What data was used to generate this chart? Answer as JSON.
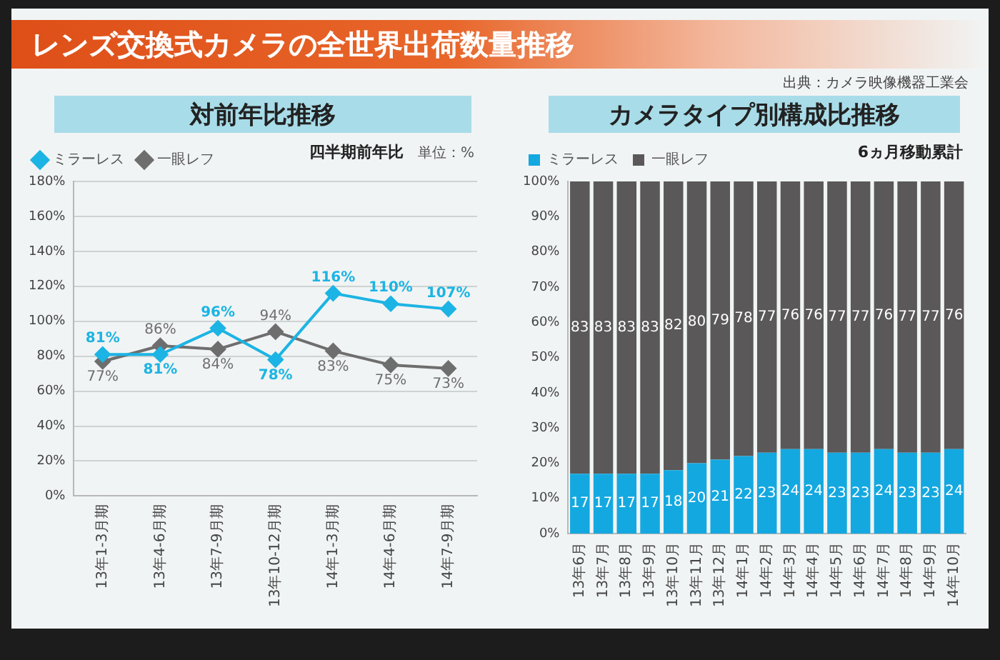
{
  "chart_data": [
    {
      "type": "other",
      "title": "レンズ交換式カメラの全世界出荷数量推移",
      "annotations": [
        "出典：カメラ映像機器工業会"
      ]
    },
    {
      "type": "line",
      "title": "対前年比推移",
      "categories": [
        "13年1-3月期",
        "13年4-6月期",
        "13年7-9月期",
        "13年10-12月期",
        "14年1-3月期",
        "14年4-6月期",
        "14年7-9月期"
      ],
      "series": [
        {
          "name": "ミラーレス",
          "color": "#1cb4e4",
          "values": [
            81,
            81,
            96,
            78,
            116,
            110,
            107
          ],
          "value_labels": [
            "81%",
            "81%",
            "96%",
            "78%",
            "116%",
            "110%",
            "107%"
          ]
        },
        {
          "name": "一眼レフ",
          "color": "#6e6e6e",
          "values": [
            77,
            86,
            84,
            94,
            83,
            75,
            73
          ],
          "value_labels": [
            "77%",
            "86%",
            "84%",
            "94%",
            "83%",
            "75%",
            "73%"
          ]
        }
      ],
      "ylim": [
        0,
        180
      ],
      "yticks": [
        {
          "value": 0,
          "label": "0%"
        },
        {
          "value": 20,
          "label": "20%"
        },
        {
          "value": 40,
          "label": "40%"
        },
        {
          "value": 60,
          "label": "60%"
        },
        {
          "value": 80,
          "label": "80%"
        },
        {
          "value": 100,
          "label": "100%"
        },
        {
          "value": 120,
          "label": "120%"
        },
        {
          "value": 140,
          "label": "140%"
        },
        {
          "value": 160,
          "label": "160%"
        },
        {
          "value": 180,
          "label": "180%"
        }
      ],
      "grid": "y",
      "legend": "top left",
      "marker": "diamond",
      "line_style": "solid",
      "annotations": [
        "四半期前年比",
        "単位：%"
      ]
    },
    {
      "type": "bar",
      "title": "カメラタイプ別構成比推移",
      "categories": [
        "13年6月",
        "13年7月",
        "13年8月",
        "13年9月",
        "13年10月",
        "13年11月",
        "13年12月",
        "14年1月",
        "14年2月",
        "14年3月",
        "14年4月",
        "14年5月",
        "14年6月",
        "14年7月",
        "14年8月",
        "14年9月",
        "14年10月"
      ],
      "series": [
        {
          "name": "ミラーレス",
          "color": "#14a8e0",
          "values": [
            17,
            17,
            17,
            17,
            18,
            20,
            21,
            22,
            23,
            24,
            24,
            23,
            23,
            24,
            23,
            23,
            24
          ]
        },
        {
          "name": "一眼レフ",
          "color": "#5a5858",
          "values": [
            83,
            83,
            83,
            83,
            82,
            80,
            79,
            78,
            77,
            76,
            76,
            77,
            77,
            76,
            77,
            77,
            76
          ]
        }
      ],
      "stacked": true,
      "ylim": [
        0,
        100
      ],
      "yticks": [
        {
          "value": 0,
          "label": "0%"
        },
        {
          "value": 10,
          "label": "10%"
        },
        {
          "value": 20,
          "label": "20%"
        },
        {
          "value": 30,
          "label": "30%"
        },
        {
          "value": 40,
          "label": "40%"
        },
        {
          "value": 50,
          "label": "50%"
        },
        {
          "value": 60,
          "label": "60%"
        },
        {
          "value": 70,
          "label": "70%"
        },
        {
          "value": 80,
          "label": "80%"
        },
        {
          "value": 90,
          "label": "90%"
        },
        {
          "value": 100,
          "label": "100%"
        }
      ],
      "grid": false,
      "legend": "top left",
      "data_labels": true,
      "annotations": [
        "6ヵ月移動累計"
      ]
    }
  ]
}
